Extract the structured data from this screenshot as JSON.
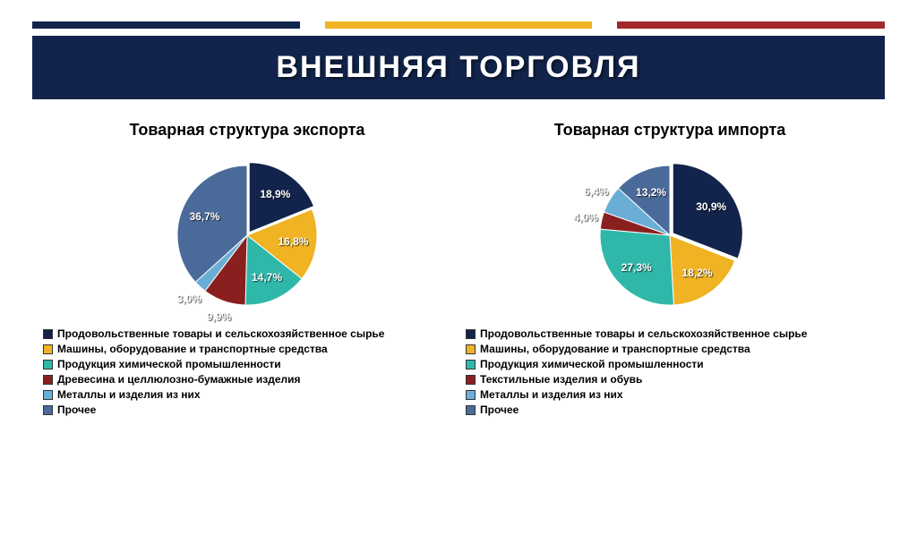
{
  "stripes": [
    {
      "color": "#12244b",
      "flex": 1
    },
    {
      "color": "#f0b323",
      "flex": 1
    },
    {
      "color": "#a12929",
      "flex": 1
    }
  ],
  "title": "ВНЕШНЯЯ ТОРГОВЛЯ",
  "header_bg": "#12244b",
  "charts": [
    {
      "title": "Товарная структура экспорта",
      "type": "pie",
      "slices": [
        {
          "label": "Продовольственные товары и сельскохозяйственное сырье",
          "value": 18.9,
          "display": "18,9%",
          "color": "#12244b"
        },
        {
          "label": "Машины, оборудование и транспортные средства",
          "value": 16.8,
          "display": "16,8%",
          "color": "#f0b323"
        },
        {
          "label": "Продукция химической промышленности",
          "value": 14.7,
          "display": "14,7%",
          "color": "#2fb8a9"
        },
        {
          "label": "Древесина и целлюлозно-бумажные изделия",
          "value": 9.9,
          "display": "9,9%",
          "color": "#8a1f1f"
        },
        {
          "label": "Металлы и изделия из них",
          "value": 3.0,
          "display": "3,0%",
          "color": "#6aaed6"
        },
        {
          "label": "Прочее",
          "value": 36.7,
          "display": "36,7%",
          "color": "#4a6a9a"
        }
      ]
    },
    {
      "title": "Товарная структура импорта",
      "type": "pie",
      "slices": [
        {
          "label": "Продовольственные товары и сельскохозяйственное сырье",
          "value": 30.9,
          "display": "30,9%",
          "color": "#12244b"
        },
        {
          "label": "Машины, оборудование и транспортные средства",
          "value": 18.2,
          "display": "18,2%",
          "color": "#f0b323"
        },
        {
          "label": "Продукция химической промышленности",
          "value": 27.3,
          "display": "27,3%",
          "color": "#2fb8a9"
        },
        {
          "label": "Текстильные изделия и обувь",
          "value": 4.0,
          "display": "4,0%",
          "color": "#8a1f1f"
        },
        {
          "label": "Металлы и изделия из них",
          "value": 6.4,
          "display": "6,4%",
          "color": "#6aaed6"
        },
        {
          "label": "Прочее",
          "value": 13.2,
          "display": "13,2%",
          "color": "#4a6a9a"
        }
      ]
    }
  ],
  "pie_style": {
    "radius": 78,
    "stroke": "#ffffff",
    "stroke_width": 1,
    "label_radius_in": 52,
    "label_radius_out": 96,
    "label_fontsize": 12,
    "separation_offset": 4
  }
}
